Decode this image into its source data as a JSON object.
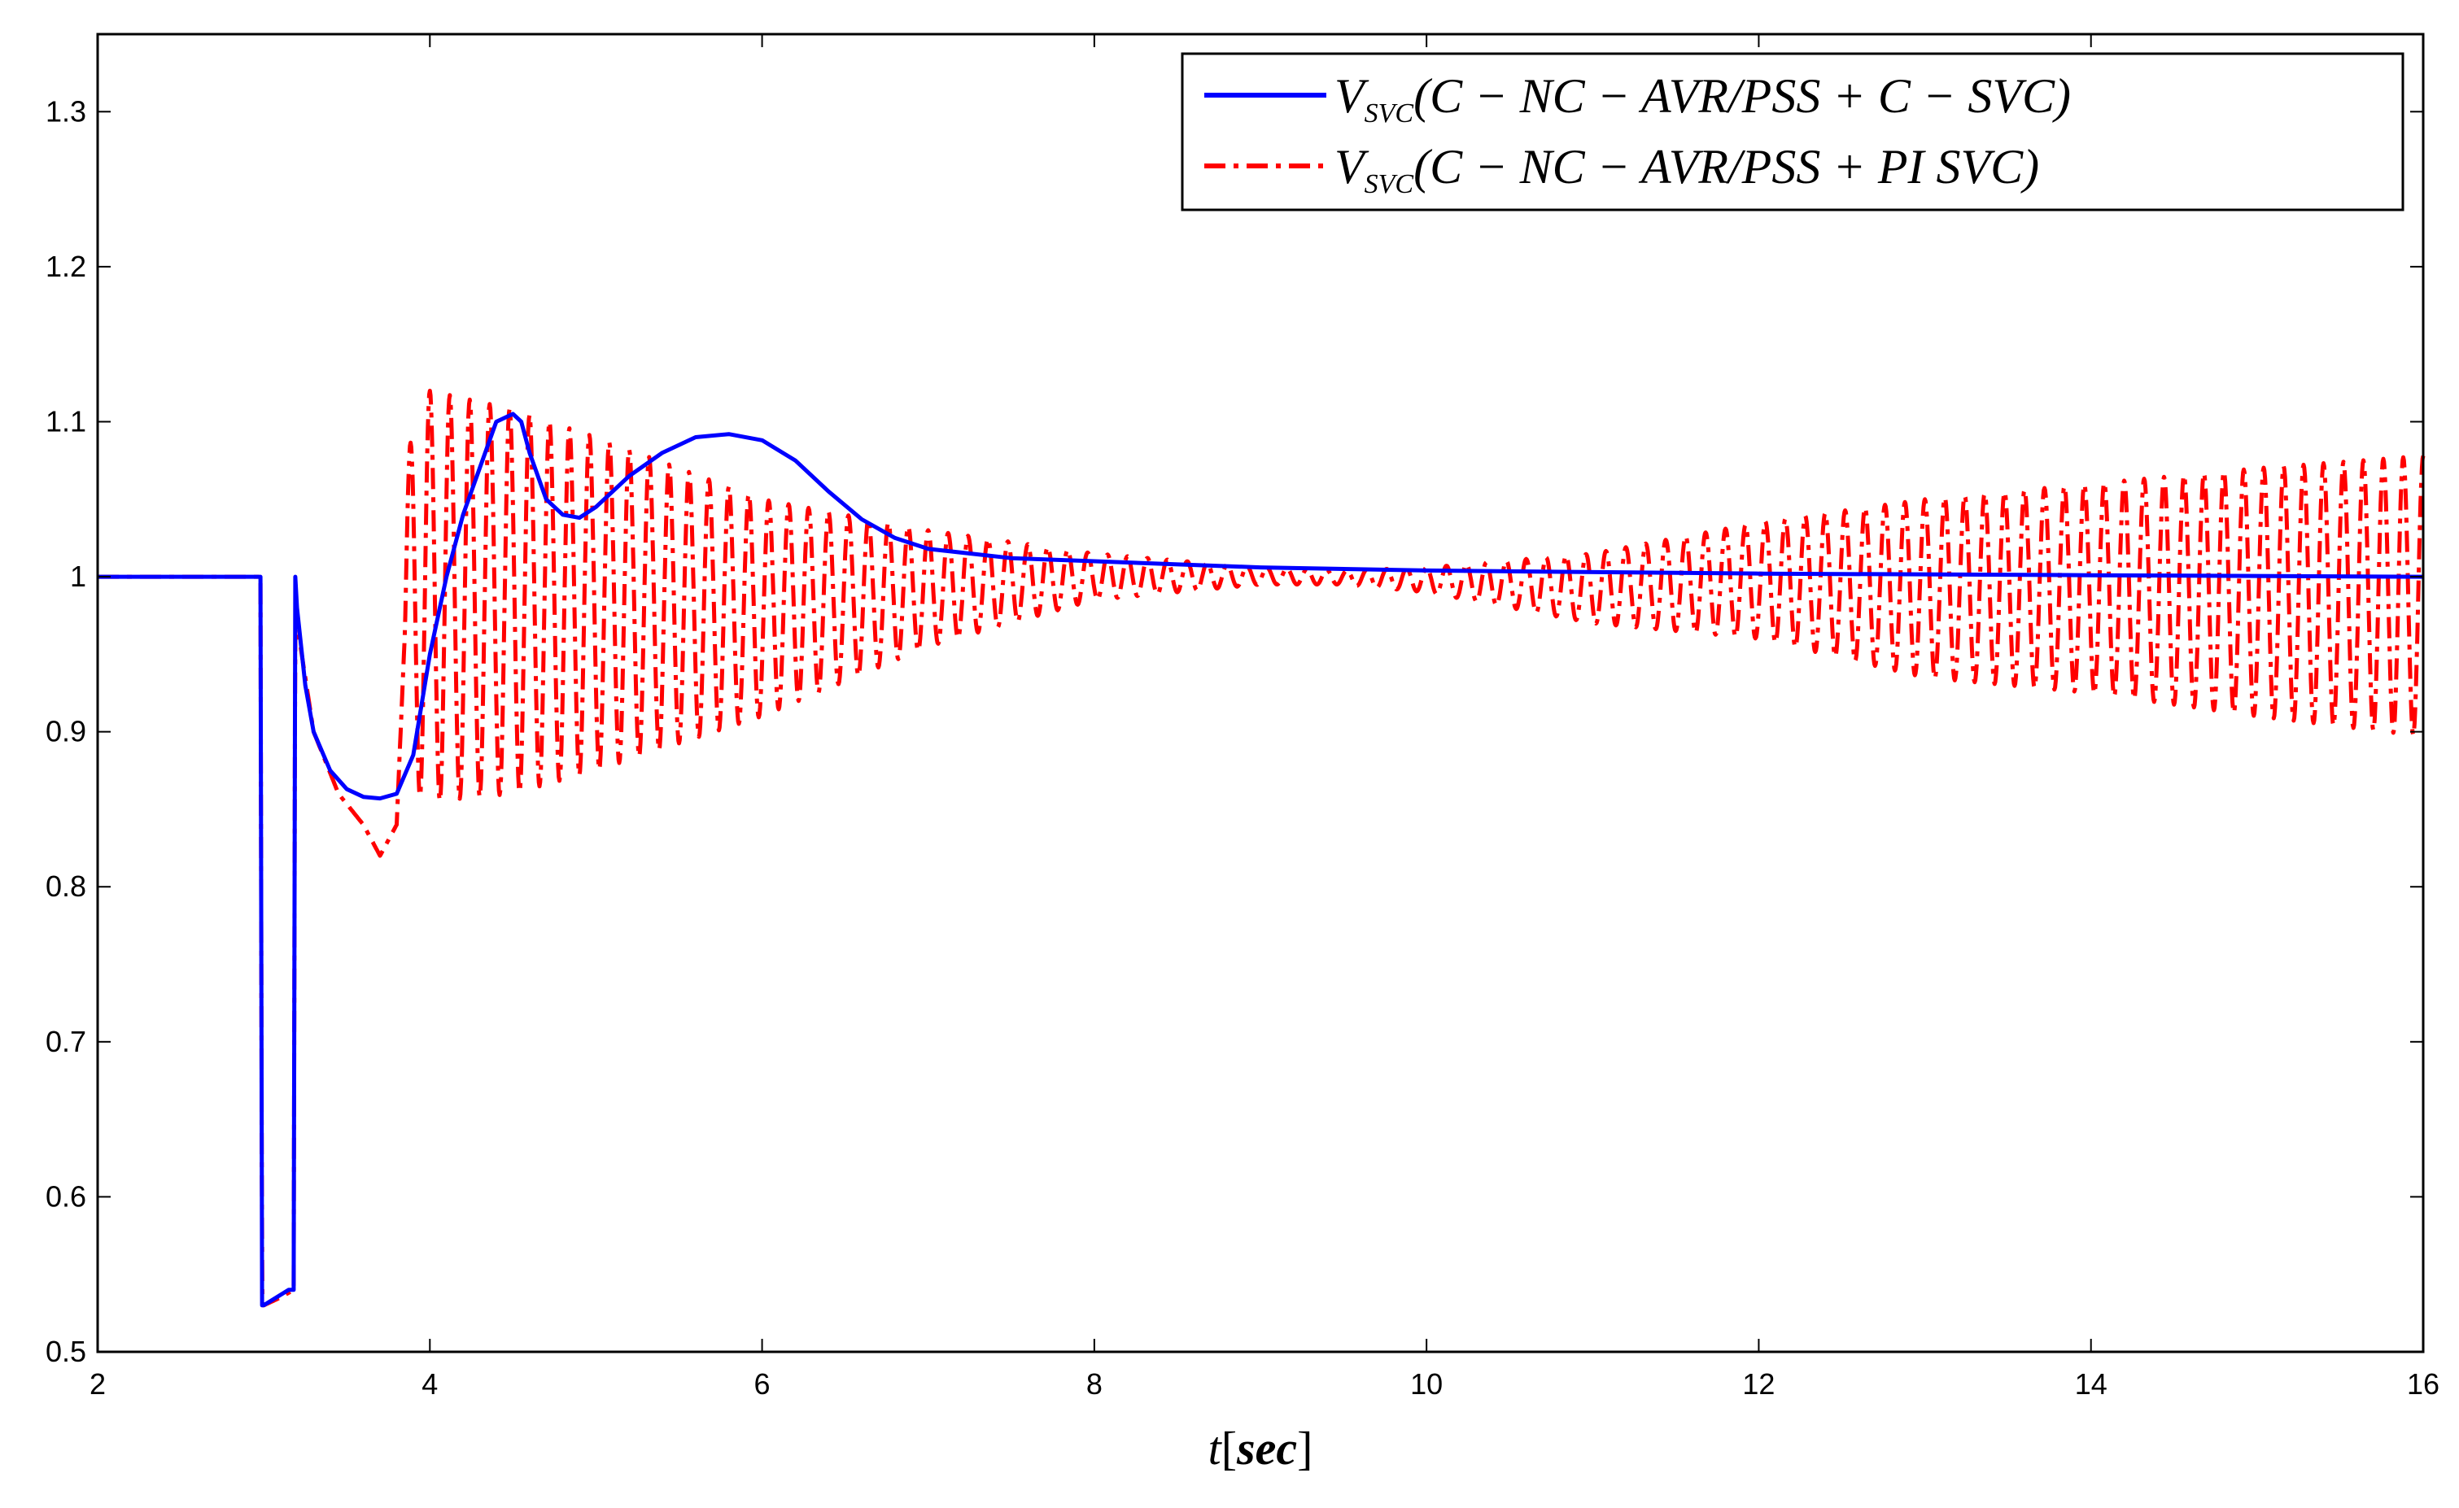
{
  "chart_data": {
    "type": "line",
    "title": "",
    "xlabel": {
      "var": "t",
      "unit": "sec"
    },
    "ylabel": "",
    "xlim": [
      2,
      16
    ],
    "ylim": [
      0.5,
      1.35
    ],
    "xticks": [
      2,
      4,
      6,
      8,
      10,
      12,
      14,
      16
    ],
    "yticks": [
      0.5,
      0.6,
      0.7,
      0.8,
      0.9,
      1,
      1.1,
      1.2,
      1.3
    ],
    "xtick_labels": [
      "2",
      "4",
      "6",
      "8",
      "10",
      "12",
      "14",
      "16"
    ],
    "ytick_labels": [
      "0.5",
      "0.6",
      "0.7",
      "0.8",
      "0.9",
      "1",
      "1.1",
      "1.2",
      "1.3"
    ],
    "grid": false,
    "legend_position": "top-right",
    "series": [
      {
        "name": "V_SVC(C - NC - AVR/PSS + C - SVC)",
        "legend_main": "V",
        "legend_sub": "SVC",
        "legend_rest": "(C − NC − AVR/PSS + C − SVC)",
        "color": "#0000ff",
        "style": "solid",
        "x": [
          2,
          2.98,
          2.99,
          3.0,
          3.15,
          3.18,
          3.19,
          3.2,
          3.25,
          3.3,
          3.4,
          3.5,
          3.6,
          3.7,
          3.8,
          3.9,
          4.0,
          4.1,
          4.2,
          4.3,
          4.4,
          4.5,
          4.55,
          4.6,
          4.7,
          4.8,
          4.9,
          5.0,
          5.2,
          5.4,
          5.6,
          5.8,
          6.0,
          6.2,
          6.4,
          6.6,
          6.8,
          7.0,
          7.5,
          8.0,
          9.0,
          10.0,
          12.0,
          14.0,
          16.0
        ],
        "y": [
          1.0,
          1.0,
          0.53,
          0.53,
          0.54,
          0.54,
          1.0,
          0.98,
          0.93,
          0.9,
          0.875,
          0.863,
          0.858,
          0.857,
          0.86,
          0.885,
          0.95,
          1.0,
          1.04,
          1.07,
          1.1,
          1.105,
          1.1,
          1.08,
          1.05,
          1.04,
          1.038,
          1.045,
          1.065,
          1.08,
          1.09,
          1.092,
          1.088,
          1.075,
          1.055,
          1.037,
          1.025,
          1.018,
          1.012,
          1.01,
          1.006,
          1.004,
          1.002,
          1.001,
          1.0
        ]
      },
      {
        "name": "V_SVC(C - NC - AVR/PSS + PI SVC)",
        "legend_main": "V",
        "legend_sub": "SVC",
        "legend_rest": "(C − NC − AVR/PSS + PI SVC)",
        "color": "#ff0000",
        "style": "dashdot",
        "generator": "damped-then-growing oscillation about 1.0 p.u., period 0.12 s",
        "x": [
          2,
          2.98,
          2.99,
          3.0,
          3.1,
          3.18,
          3.19,
          3.2,
          3.3,
          3.45,
          3.6,
          3.7,
          3.8,
          3.85,
          3.92,
          4.0,
          4.5,
          5.0,
          6.0,
          7.0,
          8.0,
          9.0,
          9.5,
          10.0,
          11.0,
          12.0,
          13.0,
          14.0,
          15.0,
          16.0
        ],
        "y_upper": [
          1.0,
          1.0,
          0.53,
          0.53,
          0.535,
          0.54,
          1.0,
          0.97,
          0.9,
          0.86,
          0.84,
          0.82,
          0.84,
          1.05,
          1.13,
          1.12,
          1.108,
          1.09,
          1.05,
          1.03,
          1.015,
          1.006,
          1.004,
          1.006,
          1.015,
          1.035,
          1.05,
          1.06,
          1.07,
          1.078
        ],
        "y_lower": [
          1.0,
          1.0,
          0.53,
          0.53,
          0.535,
          0.54,
          1.0,
          0.97,
          0.9,
          0.86,
          0.84,
          0.82,
          0.84,
          0.88,
          0.86,
          0.855,
          0.86,
          0.875,
          0.91,
          0.955,
          0.985,
          0.995,
          0.995,
          0.99,
          0.97,
          0.96,
          0.935,
          0.925,
          0.91,
          0.897
        ]
      }
    ]
  }
}
